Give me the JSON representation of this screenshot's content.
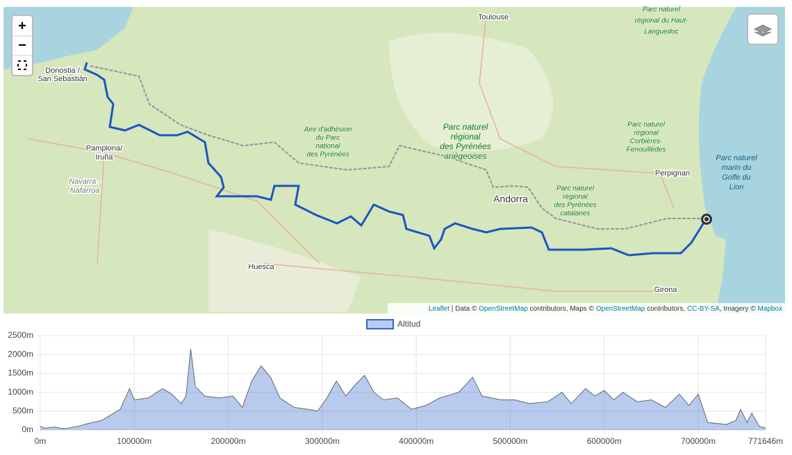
{
  "map": {
    "controls": {
      "zoom_in": "+",
      "zoom_out": "−"
    },
    "labels": [
      "Toulouse",
      "Donostia /",
      "San Sebastián",
      "Pamplona/",
      "Iruña",
      "Navarra -",
      "Nafarroa",
      "Huesca",
      "Andorra",
      "Perpignan",
      "Girona",
      "Aire d'adhésion",
      "du Parc",
      "national",
      "des Pyrénées",
      "Parc naturel",
      "régional",
      "des Pyrénées",
      "ariégeoises",
      "Parc naturel",
      "régional",
      "des Pyrénées",
      "catalanes",
      "Parc naturel",
      "régional",
      "Corbières-",
      "Fenouillèdes",
      "Parc naturel",
      "marin du",
      "Golfe du",
      "Lion",
      "Parc naturel",
      "régional du Haut-",
      "Languedoc"
    ],
    "attribution": [
      "Leaflet",
      " | Data © ",
      "OpenStreetMap",
      " contributors, Maps © ",
      "OpenStreetMap",
      " contributors, ",
      "CC-BY-SA",
      ", Imagery © ",
      "Mapbox"
    ]
  },
  "chart_data": {
    "type": "area",
    "legend_position": "top",
    "x": [
      0,
      5000,
      15000,
      25000,
      40000,
      55000,
      65000,
      75000,
      85000,
      95000,
      100000,
      115000,
      130000,
      140000,
      150000,
      155000,
      160000,
      165000,
      175000,
      190000,
      205000,
      215000,
      225000,
      235000,
      245000,
      255000,
      270000,
      285000,
      295000,
      305000,
      315000,
      325000,
      335000,
      345000,
      355000,
      365000,
      380000,
      395000,
      410000,
      425000,
      445000,
      460000,
      470000,
      490000,
      505000,
      520000,
      540000,
      555000,
      565000,
      580000,
      590000,
      600000,
      610000,
      620000,
      635000,
      650000,
      665000,
      680000,
      690000,
      700000,
      710000,
      730000,
      740000,
      745000,
      752000,
      757000,
      765000,
      771646
    ],
    "series": [
      {
        "name": "Altitud",
        "color": "#3366cc",
        "values": [
          100,
          50,
          80,
          30,
          100,
          200,
          250,
          400,
          550,
          1100,
          800,
          850,
          1100,
          950,
          700,
          900,
          2150,
          1150,
          900,
          850,
          900,
          600,
          1300,
          1700,
          1400,
          850,
          600,
          550,
          500,
          850,
          1300,
          900,
          1200,
          1450,
          1000,
          800,
          850,
          550,
          650,
          850,
          1000,
          1400,
          900,
          800,
          800,
          700,
          750,
          1000,
          700,
          1100,
          900,
          1050,
          800,
          1000,
          750,
          800,
          600,
          950,
          650,
          950,
          200,
          150,
          250,
          550,
          200,
          450,
          100,
          50
        ]
      }
    ],
    "xlim": [
      0,
      771646
    ],
    "xticks": [
      {
        "value": 0,
        "label": "0m"
      },
      {
        "value": 100000,
        "label": "100000m"
      },
      {
        "value": 200000,
        "label": "200000m"
      },
      {
        "value": 300000,
        "label": "300000m"
      },
      {
        "value": 400000,
        "label": "400000m"
      },
      {
        "value": 500000,
        "label": "500000m"
      },
      {
        "value": 600000,
        "label": "600000m"
      },
      {
        "value": 700000,
        "label": "700000m"
      },
      {
        "value": 771646,
        "label": "771646m"
      }
    ],
    "ylim": [
      0,
      2500
    ],
    "yticks": [
      {
        "value": 0,
        "label": "0m"
      },
      {
        "value": 500,
        "label": "500m"
      },
      {
        "value": 1000,
        "label": "1000m"
      },
      {
        "value": 1500,
        "label": "1500m"
      },
      {
        "value": 2000,
        "label": "2000m"
      },
      {
        "value": 2500,
        "label": "2500m"
      }
    ],
    "grid": true
  }
}
